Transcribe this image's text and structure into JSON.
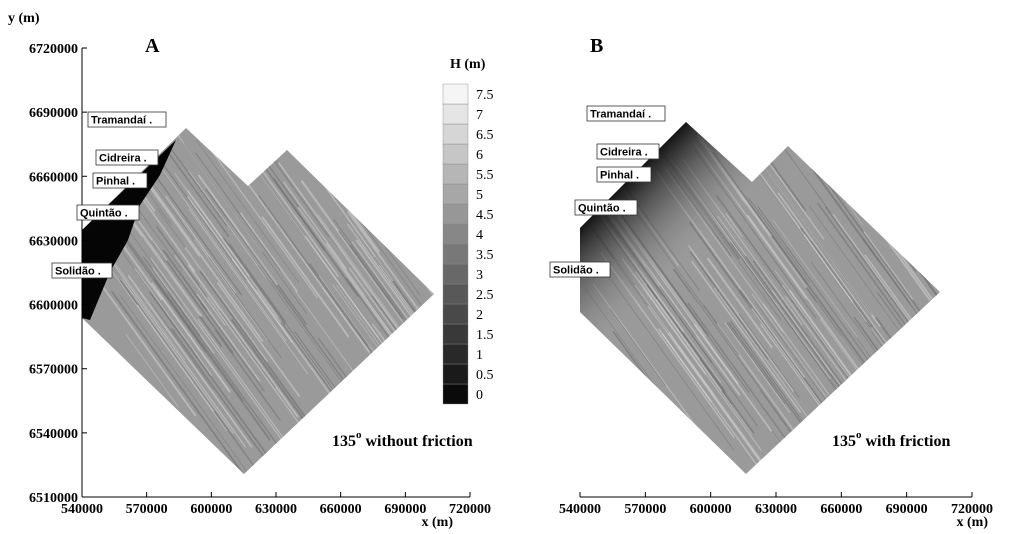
{
  "chart_data": [
    {
      "type": "contour",
      "title": "A",
      "ylabel": "y (m)",
      "xlabel": "x (m)",
      "xlim": [
        540000,
        720000
      ],
      "xticks": [
        540000,
        570000,
        600000,
        630000,
        660000,
        690000,
        720000
      ],
      "ylim": [
        6510000,
        6720000
      ],
      "yticks": [
        6510000,
        6540000,
        6570000,
        6600000,
        6630000,
        6660000,
        6690000,
        6720000
      ],
      "colorbar": {
        "title": "H (m)",
        "levels": [
          0,
          0.5,
          1,
          1.5,
          2,
          2.5,
          3,
          3.5,
          4,
          4.5,
          5,
          5.5,
          6,
          6.5,
          7,
          7.5
        ]
      },
      "places": [
        "Tramandaí .",
        "Cidreira .",
        "Pinhal .",
        "Quintão .",
        "Solidão ."
      ],
      "caption_angle": "135",
      "caption_degree": "o",
      "caption_text": "without friction",
      "friction": false
    },
    {
      "type": "contour",
      "title": "B",
      "xlabel": "x (m)",
      "xlim": [
        540000,
        720000
      ],
      "xticks": [
        540000,
        570000,
        600000,
        630000,
        660000,
        690000,
        720000
      ],
      "places": [
        "Tramandaí .",
        "Cidreira .",
        "Pinhal .",
        "Quintão .",
        "Solidão ."
      ],
      "caption_angle": "135",
      "caption_degree": "o",
      "caption_text": "with friction",
      "friction": true
    }
  ]
}
